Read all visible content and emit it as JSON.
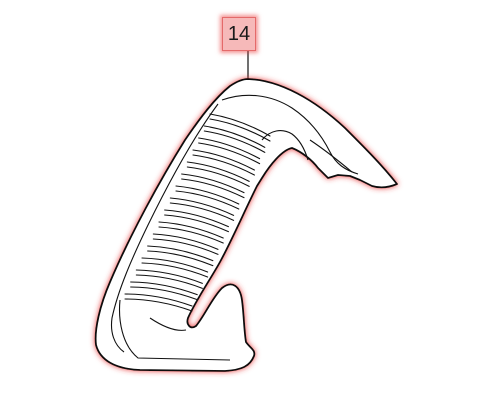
{
  "callout": {
    "number": "14"
  },
  "part": {
    "name": "grille-trim-panel",
    "highlight_color": "#e83232",
    "stroke_color": "#111111",
    "fill_color": "#ffffff"
  }
}
